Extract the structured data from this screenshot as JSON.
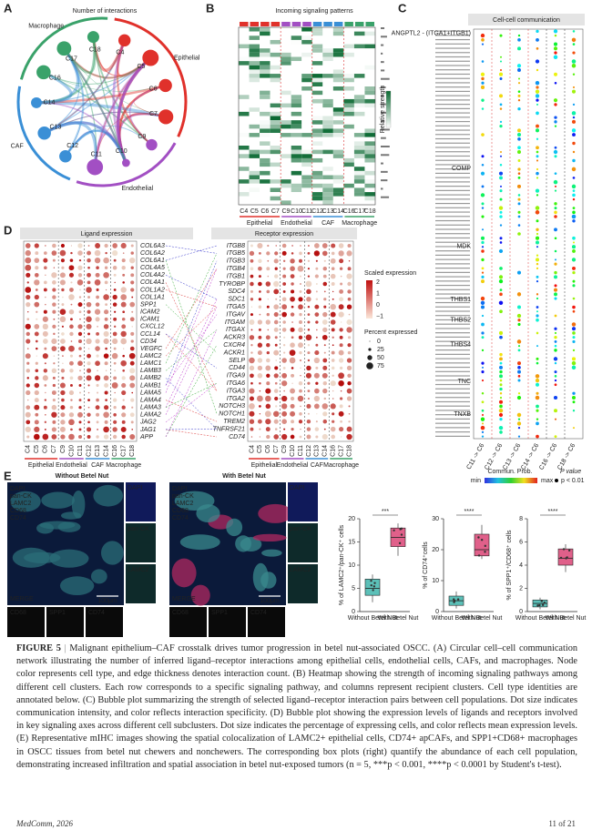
{
  "panel_a": {
    "label": "A",
    "title": "Number of interactions",
    "groups": [
      "Epithelial",
      "Endothelial",
      "CAF",
      "Macrophage"
    ],
    "nodes": [
      "C4",
      "C5",
      "C6",
      "C7",
      "C9",
      "C10",
      "C11",
      "C12",
      "C13",
      "C14",
      "C16",
      "C17",
      "C18"
    ]
  },
  "panel_b": {
    "label": "B",
    "title": "Incoming signaling patterns",
    "legend": "Relative strength",
    "columns": [
      "C4",
      "C5",
      "C6",
      "C7",
      "C9",
      "C10",
      "C11",
      "C12",
      "C13",
      "C14",
      "C16",
      "C17",
      "C18"
    ],
    "groups": [
      "Epithelial",
      "Endothelial",
      "CAF",
      "Macrophage"
    ]
  },
  "panel_c": {
    "label": "C",
    "title": "Cell-cell communication",
    "rows": [
      "ANGPTL2 - (ITGA1+ITGB1)",
      "COMP",
      "MDK",
      "THBS1",
      "THBS2",
      "THBS4",
      "TNC",
      "TNXB"
    ],
    "columns": [
      "C11 -> C6",
      "C12 -> C6",
      "C13 -> C6",
      "C14 -> C6",
      "C16 -> C6",
      "C18 -> C6"
    ],
    "legend_title": "Commun. Prob.",
    "legend_min": "min",
    "legend_max": "max",
    "pvalue_title": "P value",
    "pvalue_label": "p < 0.01"
  },
  "panel_d": {
    "label": "D",
    "ligand_title": "Ligand expression",
    "receptor_title": "Receptor expression",
    "ligands": [
      "COL6A3",
      "COL6A2",
      "COL6A1",
      "COL4A5",
      "COL4A2",
      "COL4A1",
      "COL1A2",
      "COL1A1",
      "SPP1",
      "ICAM2",
      "ICAM1",
      "CXCL12",
      "CCL14",
      "CD34",
      "VEGFC",
      "LAMC2",
      "LAMC1",
      "LAMB3",
      "LAMB2",
      "LAMB1",
      "LAMA5",
      "LAMA4",
      "LAMA3",
      "LAMA2",
      "JAG2",
      "JAG1",
      "APP"
    ],
    "receptors": [
      "ITGB8",
      "ITGB5",
      "ITGB3",
      "ITGB4",
      "ITGB1",
      "TYROBP",
      "SDC4",
      "SDC1",
      "ITGA5",
      "ITGAV",
      "ITGAM",
      "ITGAX",
      "ACKR3",
      "CXCR4",
      "ACKR1",
      "SELP",
      "CD44",
      "ITGA9",
      "ITGA6",
      "ITGA3",
      "ITGA2",
      "NOTCH3",
      "NOTCH1",
      "TREM2",
      "TNFRSF21",
      "CD74"
    ],
    "columns": [
      "C4",
      "C5",
      "C6",
      "C7",
      "C9",
      "C10",
      "C11",
      "C12",
      "C13",
      "C14",
      "C16",
      "C17",
      "C18"
    ],
    "groups": [
      "Epithelial",
      "Endothelial",
      "CAF",
      "Macrophage"
    ],
    "color_title": "Scaled expression",
    "color_ticks": [
      "2",
      "1",
      "0",
      "−1"
    ],
    "size_title": "Percent expressed",
    "size_ticks": [
      "0",
      "25",
      "50",
      "75"
    ]
  },
  "panel_e": {
    "label": "E",
    "conditions": [
      "Without Betel Nut",
      "With Betel Nut"
    ],
    "channels": [
      "DAPI",
      "pan-CK",
      "LAMC2",
      "CD68",
      "SPP1",
      "CD74"
    ],
    "merge": "MERGE",
    "scale": "100μm",
    "boxplots": [
      {
        "ylabel": "% of LAMC2⁺/pan-CK⁺ cells",
        "categories": [
          "Without Betel Nut",
          "With Betel Nut"
        ],
        "sig": "***",
        "ylim": [
          0,
          20
        ],
        "yticks": [
          0,
          5,
          10,
          15,
          20
        ],
        "boxes": [
          [
            2,
            3.5,
            5,
            7,
            8
          ],
          [
            12,
            14,
            16,
            18,
            19
          ]
        ]
      },
      {
        "ylabel": "% of CD74⁺cells",
        "categories": [
          "Without Betel Nut",
          "With Betel Nut"
        ],
        "sig": "****",
        "ylim": [
          0,
          30
        ],
        "yticks": [
          0,
          10,
          20,
          30
        ],
        "boxes": [
          [
            1,
            2,
            3.5,
            5,
            6.5
          ],
          [
            17,
            18,
            20,
            25,
            28
          ]
        ]
      },
      {
        "ylabel": "% of SPP1⁺/CD68⁺ cells",
        "categories": [
          "Without Betel Nut",
          "With Betel Nut"
        ],
        "sig": "****",
        "ylim": [
          0,
          8
        ],
        "yticks": [
          0,
          2,
          4,
          6,
          8
        ],
        "boxes": [
          [
            0.2,
            0.4,
            0.7,
            1,
            1.2
          ],
          [
            3.4,
            4,
            4.6,
            5.4,
            5.8
          ]
        ]
      }
    ]
  },
  "caption": {
    "label": "FIGURE 5",
    "separator": "|",
    "text": "Malignant epithelium–CAF crosstalk drives tumor progression in betel nut-associated OSCC. (A) Circular cell–cell communication network illustrating the number of inferred ligand–receptor interactions among epithelial cells, endothelial cells, CAFs, and macrophages. Node color represents cell type, and edge thickness denotes interaction count. (B) Heatmap showing the strength of incoming signaling pathways among different cell clusters. Each row corresponds to a specific signaling pathway, and columns represent recipient clusters. Cell type identities are annotated below. (C) Bubble plot summarizing the strength of selected ligand–receptor interaction pairs between cell populations. Dot size indicates communication intensity, and color reflects interaction specificity. (D) Bubble plot showing the expression levels of ligands and receptors involved in key signaling axes across different cell subclusters. Dot size indicates the percentage of expressing cells, and color reflects mean expression levels. (E) Representative mIHC images showing the spatial colocalization of LAMC2+ epithelial cells, CD74+ apCAFs, and SPP1+CD68+ macrophages in OSCC tissues from betel nut chewers and nonchewers. The corresponding box plots (right) quantify the abundance of each cell population, demonstrating increased infiltration and spatial association in betel nut-exposed tumors (n = 5, ***p < 0.001, ****p < 0.0001 by Student's t-test)."
  },
  "footer": {
    "journal": "MedComm, 2026",
    "page": "11 of 21"
  }
}
